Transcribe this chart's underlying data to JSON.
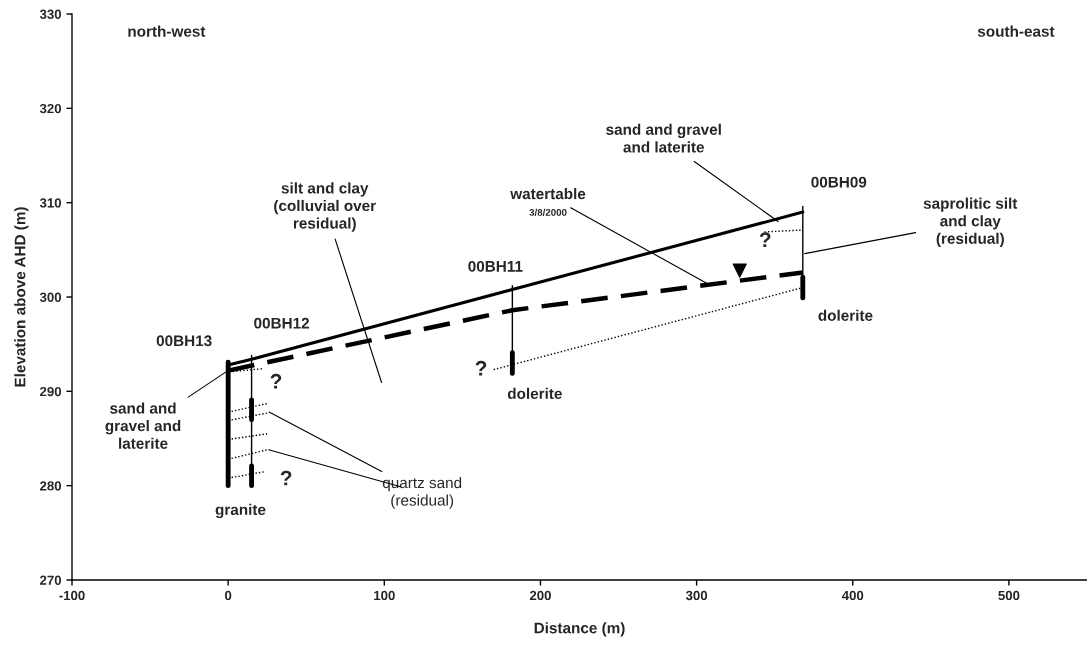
{
  "chart_data": {
    "type": "line",
    "xlabel": "Distance (m)",
    "ylabel": "Elevation above AHD (m)",
    "xlim": [
      -100,
      550
    ],
    "xticks": [
      -100,
      0,
      100,
      200,
      300,
      400,
      500
    ],
    "ylim": [
      270,
      330
    ],
    "yticks": [
      270,
      280,
      290,
      300,
      310,
      320,
      330
    ],
    "grid": false,
    "series": [
      {
        "color": "#000000",
        "line_style": "solid",
        "x": [
          0,
          15,
          182,
          368
        ],
        "values": [
          292.8,
          293.4,
          300.8,
          309.0
        ]
      },
      {
        "color": "#000000",
        "line_style": "dashed",
        "x": [
          0,
          182,
          368
        ],
        "values": [
          292.2,
          298.6,
          302.6
        ]
      },
      {
        "name": "00BH13",
        "color": "#000000",
        "line_style": "solid",
        "x": [
          0,
          0
        ],
        "values": [
          280,
          293.1
        ]
      },
      {
        "name": "00BH12",
        "color": "#000000",
        "line_style": "solid",
        "x": [
          15,
          15
        ],
        "values": [
          280,
          293.8
        ]
      },
      {
        "color": "#000000",
        "line_style": "solid",
        "x": [
          15,
          15
        ],
        "values": [
          287,
          289.1
        ]
      },
      {
        "color": "#000000",
        "line_style": "solid",
        "x": [
          15,
          15
        ],
        "values": [
          280,
          282.1
        ]
      },
      {
        "name": "00BH11",
        "color": "#000000",
        "line_style": "solid",
        "x": [
          182,
          182
        ],
        "values": [
          292,
          301.2
        ]
      },
      {
        "color": "#000000",
        "line_style": "solid",
        "x": [
          182,
          182
        ],
        "values": [
          291.9,
          294.1
        ]
      },
      {
        "name": "00BH09",
        "color": "#000000",
        "line_style": "solid",
        "x": [
          368,
          368
        ],
        "values": [
          300,
          309.6
        ]
      },
      {
        "color": "#000000",
        "line_style": "solid",
        "x": [
          368,
          368
        ],
        "values": [
          299.9,
          302.1
        ]
      },
      {
        "color": "#000000",
        "line_style": "dotted",
        "x": [
          170,
          368
        ],
        "values": [
          292.3,
          301.0
        ]
      },
      {
        "color": "#000000",
        "line_style": "dotted",
        "x": [
          343.5,
          368
        ],
        "values": [
          306.9,
          307.1
        ]
      },
      {
        "color": "#000000",
        "line_style": "dotted",
        "x": [
          3,
          22
        ],
        "values": [
          292.1,
          292.4
        ]
      },
      {
        "color": "#000000",
        "line_style": "dotted",
        "x": [
          0,
          25
        ],
        "values": [
          287.8,
          288.7
        ]
      },
      {
        "color": "#000000",
        "line_style": "dotted",
        "x": [
          0,
          25
        ],
        "values": [
          286.9,
          287.7
        ]
      },
      {
        "color": "#000000",
        "line_style": "dotted",
        "x": [
          0,
          25
        ],
        "values": [
          284.9,
          285.5
        ]
      },
      {
        "color": "#000000",
        "line_style": "dotted",
        "x": [
          0,
          25
        ],
        "values": [
          282.8,
          283.8
        ]
      },
      {
        "color": "#000000",
        "line_style": "dotted",
        "x": [
          0,
          24
        ],
        "values": [
          280.8,
          281.5
        ]
      },
      {
        "type": "scatter",
        "marker": "triangle",
        "color": "#000000",
        "x": [
          327.6
        ],
        "values": [
          302.8
        ]
      }
    ],
    "annotations": [
      "north-west",
      "south-east",
      "silt and clay\n(colluvial over\nresidual)",
      {
        "text": "watertable",
        "x": 307,
        "y": 301.4
      },
      "3/8/2000",
      {
        "text": "sand and gravel\nand laterite",
        "x": 352.2,
        "y": 308.0
      },
      {
        "text": "saprolitic silt\nand clay\n(residual)",
        "x": 369.2,
        "y": 304.6
      },
      {
        "text": "sand and\ngravel and\nlaterite",
        "x": 0.8,
        "y": 292.3
      },
      {
        "text": "quartz sand\n(residual)",
        "x": 26.2,
        "y": 287.8
      },
      "?",
      "?",
      "?",
      "?",
      "granite",
      "dolerite",
      "dolerite"
    ]
  }
}
